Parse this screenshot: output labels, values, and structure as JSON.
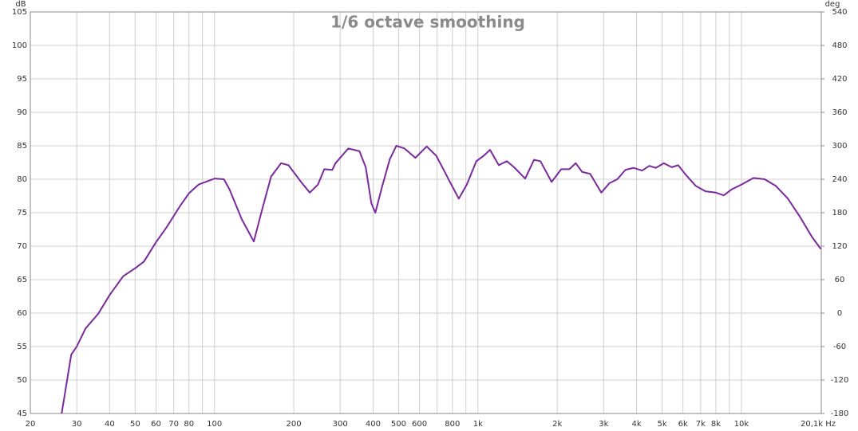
{
  "chart_data": {
    "type": "line",
    "title": "1/6 octave smoothing",
    "ylabel": "dB",
    "y2label": "deg",
    "xscale": "log",
    "grid": true,
    "color": "#7a2a9c",
    "x": [
      26.3,
      28.6,
      30,
      32.4,
      36.2,
      40,
      45,
      50,
      54,
      60,
      66,
      74,
      80,
      87,
      100,
      108.6,
      114,
      127,
      141,
      151,
      164,
      179,
      191,
      215,
      230,
      247,
      261,
      280,
      288,
      322,
      355,
      375,
      394,
      408,
      432,
      463,
      490,
      526,
      579,
      639,
      695,
      746,
      778,
      846,
      907,
      986,
      1051,
      1111,
      1200,
      1287,
      1371,
      1511,
      1632,
      1726,
      1904,
      2071,
      2222,
      2350,
      2485,
      2666,
      2939,
      3152,
      3381,
      3627,
      3890,
      4200,
      4473,
      4731,
      5075,
      5442,
      5754,
      6172,
      6711,
      7300,
      7996,
      8574,
      9196,
      10000,
      11110,
      12254,
      13514,
      15012,
      16674,
      18520,
      20000
    ],
    "values": [
      45,
      53.8,
      55,
      57.7,
      59.9,
      62.7,
      65.5,
      66.7,
      67.7,
      70.6,
      72.9,
      76,
      77.9,
      79.2,
      80.1,
      80,
      78.5,
      74,
      70.7,
      75.2,
      80.4,
      82.4,
      82.1,
      79.4,
      78,
      79.2,
      81.5,
      81.4,
      82.4,
      84.6,
      84.2,
      81.8,
      76.4,
      75,
      78.8,
      83,
      85,
      84.6,
      83.2,
      84.9,
      83.5,
      81.2,
      79.8,
      77.1,
      79.2,
      82.7,
      83.5,
      84.4,
      82.1,
      82.7,
      81.8,
      80.1,
      82.9,
      82.7,
      79.6,
      81.5,
      81.5,
      82.4,
      81.1,
      80.8,
      78,
      79.4,
      80,
      81.4,
      81.7,
      81.3,
      82,
      81.7,
      82.4,
      81.8,
      82.1,
      80.6,
      79,
      78.2,
      78,
      77.6,
      78.5,
      79.2,
      80.2,
      80,
      79,
      77.1,
      74.4,
      71.4,
      69.6
    ],
    "xlim": [
      20,
      20100
    ],
    "xticks": [
      20,
      30,
      40,
      50,
      60,
      70,
      80,
      100,
      200,
      300,
      400,
      500,
      600,
      800,
      {
        "value": 1000,
        "label": "1k"
      },
      {
        "value": 2000,
        "label": "2k"
      },
      {
        "value": 3000,
        "label": "3k"
      },
      {
        "value": 4000,
        "label": "4k"
      },
      {
        "value": 5000,
        "label": "5k"
      },
      {
        "value": 6000,
        "label": "6k"
      },
      {
        "value": 7000,
        "label": "7k"
      },
      {
        "value": 8000,
        "label": "8k"
      },
      {
        "value": 10000,
        "label": "10k"
      },
      {
        "value": 20100,
        "label": "20,1k Hz"
      }
    ],
    "xgrid_minor": [
      90,
      700,
      900,
      9000
    ],
    "ylim": [
      45,
      105
    ],
    "yticks": [
      45,
      50,
      55,
      60,
      65,
      70,
      75,
      80,
      85,
      90,
      95,
      100,
      105
    ],
    "y2lim": [
      -180,
      540
    ],
    "y2ticks": [
      -180,
      -120,
      -60,
      0,
      60,
      120,
      180,
      240,
      300,
      360,
      420,
      480,
      540
    ]
  }
}
